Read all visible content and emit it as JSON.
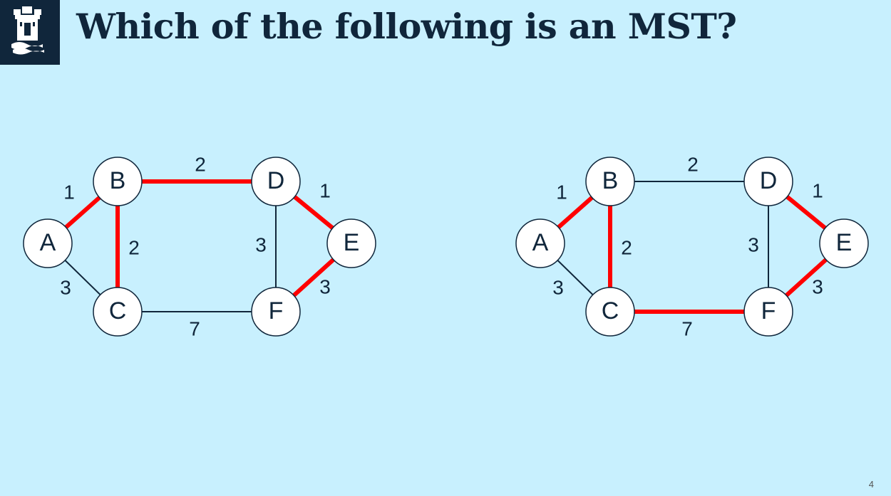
{
  "slide": {
    "title": "Which of the following is an MST?",
    "page_number": "4",
    "colors": {
      "background": "#c8f0fe",
      "dark": "#10263b",
      "highlight": "#ff0000"
    }
  },
  "logo": {
    "icon": "castle-crest-icon"
  },
  "graphs": [
    {
      "nodes": [
        "A",
        "B",
        "C",
        "D",
        "E",
        "F"
      ],
      "edges": [
        {
          "from": "A",
          "to": "B",
          "weight": "1",
          "highlighted": true
        },
        {
          "from": "A",
          "to": "C",
          "weight": "3",
          "highlighted": false
        },
        {
          "from": "B",
          "to": "C",
          "weight": "2",
          "highlighted": true
        },
        {
          "from": "B",
          "to": "D",
          "weight": "2",
          "highlighted": true
        },
        {
          "from": "C",
          "to": "F",
          "weight": "7",
          "highlighted": false
        },
        {
          "from": "D",
          "to": "E",
          "weight": "1",
          "highlighted": true
        },
        {
          "from": "D",
          "to": "F",
          "weight": "3",
          "highlighted": false
        },
        {
          "from": "E",
          "to": "F",
          "weight": "3",
          "highlighted": true
        }
      ]
    },
    {
      "nodes": [
        "A",
        "B",
        "C",
        "D",
        "E",
        "F"
      ],
      "edges": [
        {
          "from": "A",
          "to": "B",
          "weight": "1",
          "highlighted": true
        },
        {
          "from": "A",
          "to": "C",
          "weight": "3",
          "highlighted": false
        },
        {
          "from": "B",
          "to": "C",
          "weight": "2",
          "highlighted": true
        },
        {
          "from": "B",
          "to": "D",
          "weight": "2",
          "highlighted": false
        },
        {
          "from": "C",
          "to": "F",
          "weight": "7",
          "highlighted": true
        },
        {
          "from": "D",
          "to": "E",
          "weight": "1",
          "highlighted": true
        },
        {
          "from": "D",
          "to": "F",
          "weight": "3",
          "highlighted": false
        },
        {
          "from": "E",
          "to": "F",
          "weight": "3",
          "highlighted": true
        }
      ]
    }
  ]
}
